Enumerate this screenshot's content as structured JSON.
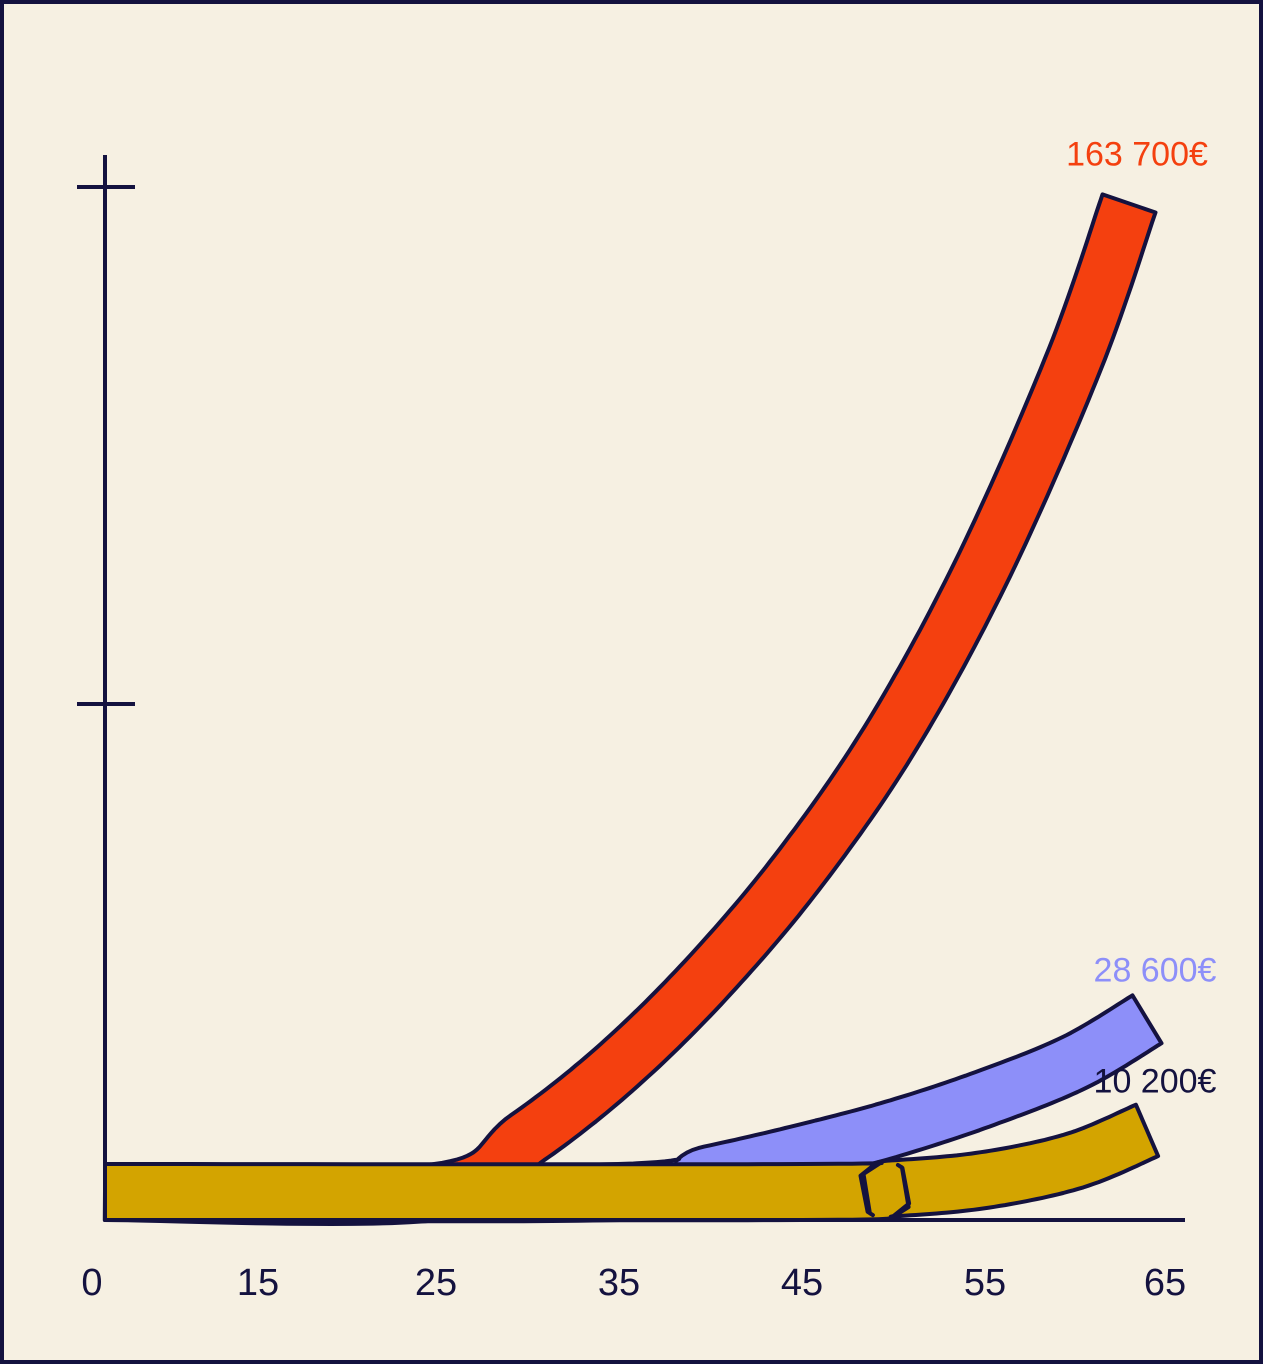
{
  "chart_data": {
    "type": "area",
    "title": "",
    "xlabel": "",
    "ylabel": "",
    "x_ticks": [
      0,
      15,
      25,
      35,
      45,
      55,
      65
    ],
    "x_tick_labels": [
      "0",
      "15",
      "25",
      "35",
      "45",
      "55",
      "65"
    ],
    "xlim": [
      0,
      65
    ],
    "ylim": [
      0,
      180000
    ],
    "y_ticks_unlabeled": [
      60000,
      120000
    ],
    "grid": false,
    "legend": "none",
    "colors": {
      "background": "#F6F0E2",
      "axis": "#14123F",
      "outline": "#14123F"
    },
    "series": [
      {
        "start_age": 25,
        "end_age": 63,
        "final_value": 163700,
        "end_label": "163 700€",
        "color": "#F4400F",
        "label_color": "#F4400F",
        "points": [
          [
            25,
            0
          ],
          [
            30,
            9000
          ],
          [
            35,
            21000
          ],
          [
            40,
            36000
          ],
          [
            45,
            54000
          ],
          [
            50,
            76000
          ],
          [
            55,
            104000
          ],
          [
            60,
            138000
          ],
          [
            63,
            163700
          ]
        ]
      },
      {
        "start_age": 35,
        "end_age": 64,
        "final_value": 28600,
        "end_label": "28 600€",
        "color": "#8D8FF9",
        "label_color": "#8D8FF9",
        "points": [
          [
            35,
            0
          ],
          [
            40,
            3000
          ],
          [
            45,
            6500
          ],
          [
            50,
            10500
          ],
          [
            55,
            15500
          ],
          [
            60,
            21500
          ],
          [
            64,
            28600
          ]
        ]
      },
      {
        "start_age": 45,
        "end_age": 64,
        "final_value": 10200,
        "end_label": "10 200€",
        "color": "#D3A400",
        "label_color": "#14123F",
        "points": [
          [
            45,
            0
          ],
          [
            50,
            600
          ],
          [
            55,
            2000
          ],
          [
            60,
            5200
          ],
          [
            64,
            10200
          ]
        ]
      }
    ]
  }
}
